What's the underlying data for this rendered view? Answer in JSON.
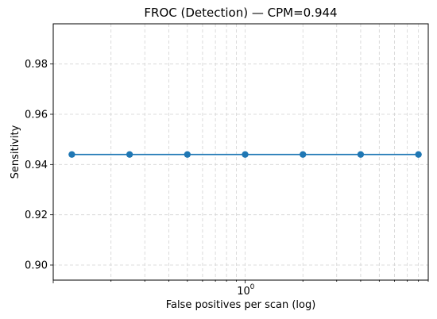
{
  "chart_data": {
    "type": "line",
    "title": "FROC (Detection) — CPM=0.944",
    "xlabel": "False positives per scan (log)",
    "ylabel": "Sensitivity",
    "x_scale": "log",
    "xlim": [
      0.1,
      9
    ],
    "ylim": [
      0.894,
      0.996
    ],
    "x_ticks": [
      1
    ],
    "x_tick_labels": [
      {
        "base": "10",
        "exp": "0"
      }
    ],
    "y_ticks": [
      0.9,
      0.92,
      0.94,
      0.96,
      0.98
    ],
    "y_tick_labels": [
      "0.90",
      "0.92",
      "0.94",
      "0.96",
      "0.98"
    ],
    "grid": true,
    "series": [
      {
        "x": [
          0.125,
          0.25,
          0.5,
          1,
          2,
          4,
          8
        ],
        "y": [
          0.944,
          0.944,
          0.944,
          0.944,
          0.944,
          0.944,
          0.944
        ],
        "color": "#1f77b4"
      }
    ]
  }
}
